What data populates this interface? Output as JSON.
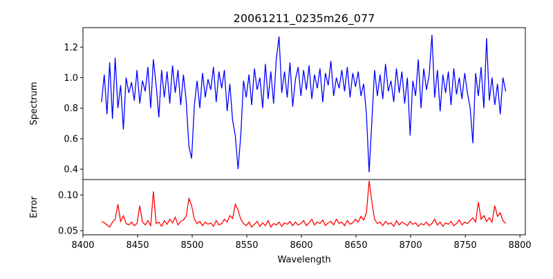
{
  "chart_data": [
    {
      "type": "line",
      "title": "20061211_0235m26_077",
      "xlabel": "",
      "ylabel": "Spectrum",
      "xlim": [
        8400,
        8805
      ],
      "ylim": [
        0.332,
        1.328
      ],
      "xticks": [
        8400,
        8450,
        8500,
        8550,
        8600,
        8650,
        8700,
        8750,
        8800
      ],
      "yticks": [
        "0.4",
        "0.6",
        "0.8",
        "1.0",
        "1.2"
      ],
      "grid": false,
      "color": "#0000ff",
      "x_start": 8417,
      "x_step": 2.5,
      "series": [
        {
          "name": "Spectrum",
          "values": [
            0.84,
            1.02,
            0.76,
            1.1,
            0.73,
            1.13,
            0.8,
            0.95,
            0.66,
            1.0,
            0.9,
            0.97,
            0.85,
            1.05,
            0.83,
            0.98,
            0.91,
            1.07,
            0.8,
            1.12,
            0.95,
            0.74,
            1.05,
            0.87,
            1.04,
            0.83,
            1.08,
            0.9,
            1.05,
            0.82,
            1.02,
            0.85,
            0.55,
            0.47,
            0.82,
            0.98,
            0.8,
            1.03,
            0.87,
            0.99,
            0.92,
            1.07,
            0.84,
            1.04,
            0.93,
            1.05,
            0.78,
            0.96,
            0.72,
            0.62,
            0.4,
            0.62,
            0.98,
            0.87,
            1.02,
            0.82,
            1.06,
            0.92,
            1.0,
            0.8,
            1.09,
            0.86,
            1.04,
            0.83,
            1.12,
            1.27,
            0.9,
            1.04,
            0.87,
            1.1,
            0.81,
            0.99,
            1.07,
            0.88,
            1.05,
            0.92,
            1.08,
            0.86,
            1.02,
            0.93,
            1.06,
            0.84,
            1.03,
            0.95,
            1.11,
            0.88,
            1.0,
            0.93,
            1.05,
            0.91,
            1.07,
            0.87,
            1.03,
            0.94,
            1.04,
            0.88,
            0.96,
            0.76,
            0.38,
            0.72,
            1.05,
            0.88,
            1.02,
            0.86,
            1.09,
            0.91,
            0.98,
            0.84,
            1.06,
            0.9,
            1.04,
            0.83,
            1.0,
            0.62,
            0.98,
            0.88,
            1.12,
            0.8,
            1.06,
            0.92,
            1.02,
            1.28,
            0.87,
            1.05,
            0.78,
            1.02,
            0.9,
            1.04,
            0.82,
            1.06,
            0.89,
            1.0,
            0.86,
            1.03,
            0.9,
            0.8,
            0.57,
            1.03,
            0.88,
            1.07,
            0.8,
            1.26,
            0.85,
            1.0,
            0.82,
            0.96,
            0.76,
            1.0,
            0.91
          ]
        }
      ]
    },
    {
      "type": "line",
      "xlabel": "Wavelength",
      "ylabel": "Error",
      "xlim": [
        8400,
        8805
      ],
      "ylim": [
        0.0442,
        0.1216
      ],
      "xticks": [
        8400,
        8450,
        8500,
        8550,
        8600,
        8650,
        8700,
        8750,
        8800
      ],
      "yticks": [
        "0.05",
        "0.10"
      ],
      "grid": false,
      "color": "#ff0000",
      "x_start": 8417,
      "x_step": 2.5,
      "series": [
        {
          "name": "Error",
          "values": [
            0.063,
            0.061,
            0.058,
            0.055,
            0.062,
            0.066,
            0.087,
            0.063,
            0.071,
            0.06,
            0.058,
            0.062,
            0.057,
            0.06,
            0.085,
            0.062,
            0.058,
            0.064,
            0.057,
            0.105,
            0.06,
            0.062,
            0.056,
            0.064,
            0.059,
            0.066,
            0.061,
            0.069,
            0.058,
            0.063,
            0.065,
            0.07,
            0.095,
            0.085,
            0.066,
            0.06,
            0.063,
            0.057,
            0.062,
            0.059,
            0.061,
            0.056,
            0.064,
            0.058,
            0.06,
            0.066,
            0.062,
            0.071,
            0.067,
            0.087,
            0.079,
            0.066,
            0.06,
            0.057,
            0.062,
            0.055,
            0.059,
            0.063,
            0.056,
            0.061,
            0.057,
            0.064,
            0.055,
            0.06,
            0.058,
            0.062,
            0.056,
            0.061,
            0.059,
            0.063,
            0.057,
            0.062,
            0.058,
            0.06,
            0.064,
            0.057,
            0.061,
            0.066,
            0.058,
            0.062,
            0.06,
            0.065,
            0.057,
            0.061,
            0.063,
            0.058,
            0.066,
            0.06,
            0.062,
            0.057,
            0.064,
            0.059,
            0.061,
            0.066,
            0.062,
            0.07,
            0.065,
            0.075,
            0.12,
            0.09,
            0.066,
            0.06,
            0.062,
            0.057,
            0.063,
            0.059,
            0.061,
            0.056,
            0.064,
            0.058,
            0.062,
            0.06,
            0.057,
            0.063,
            0.059,
            0.061,
            0.056,
            0.06,
            0.058,
            0.062,
            0.057,
            0.06,
            0.066,
            0.058,
            0.062,
            0.056,
            0.061,
            0.059,
            0.063,
            0.057,
            0.06,
            0.065,
            0.058,
            0.062,
            0.06,
            0.064,
            0.068,
            0.062,
            0.09,
            0.066,
            0.071,
            0.063,
            0.068,
            0.062,
            0.085,
            0.07,
            0.075,
            0.064,
            0.06
          ]
        }
      ]
    }
  ]
}
